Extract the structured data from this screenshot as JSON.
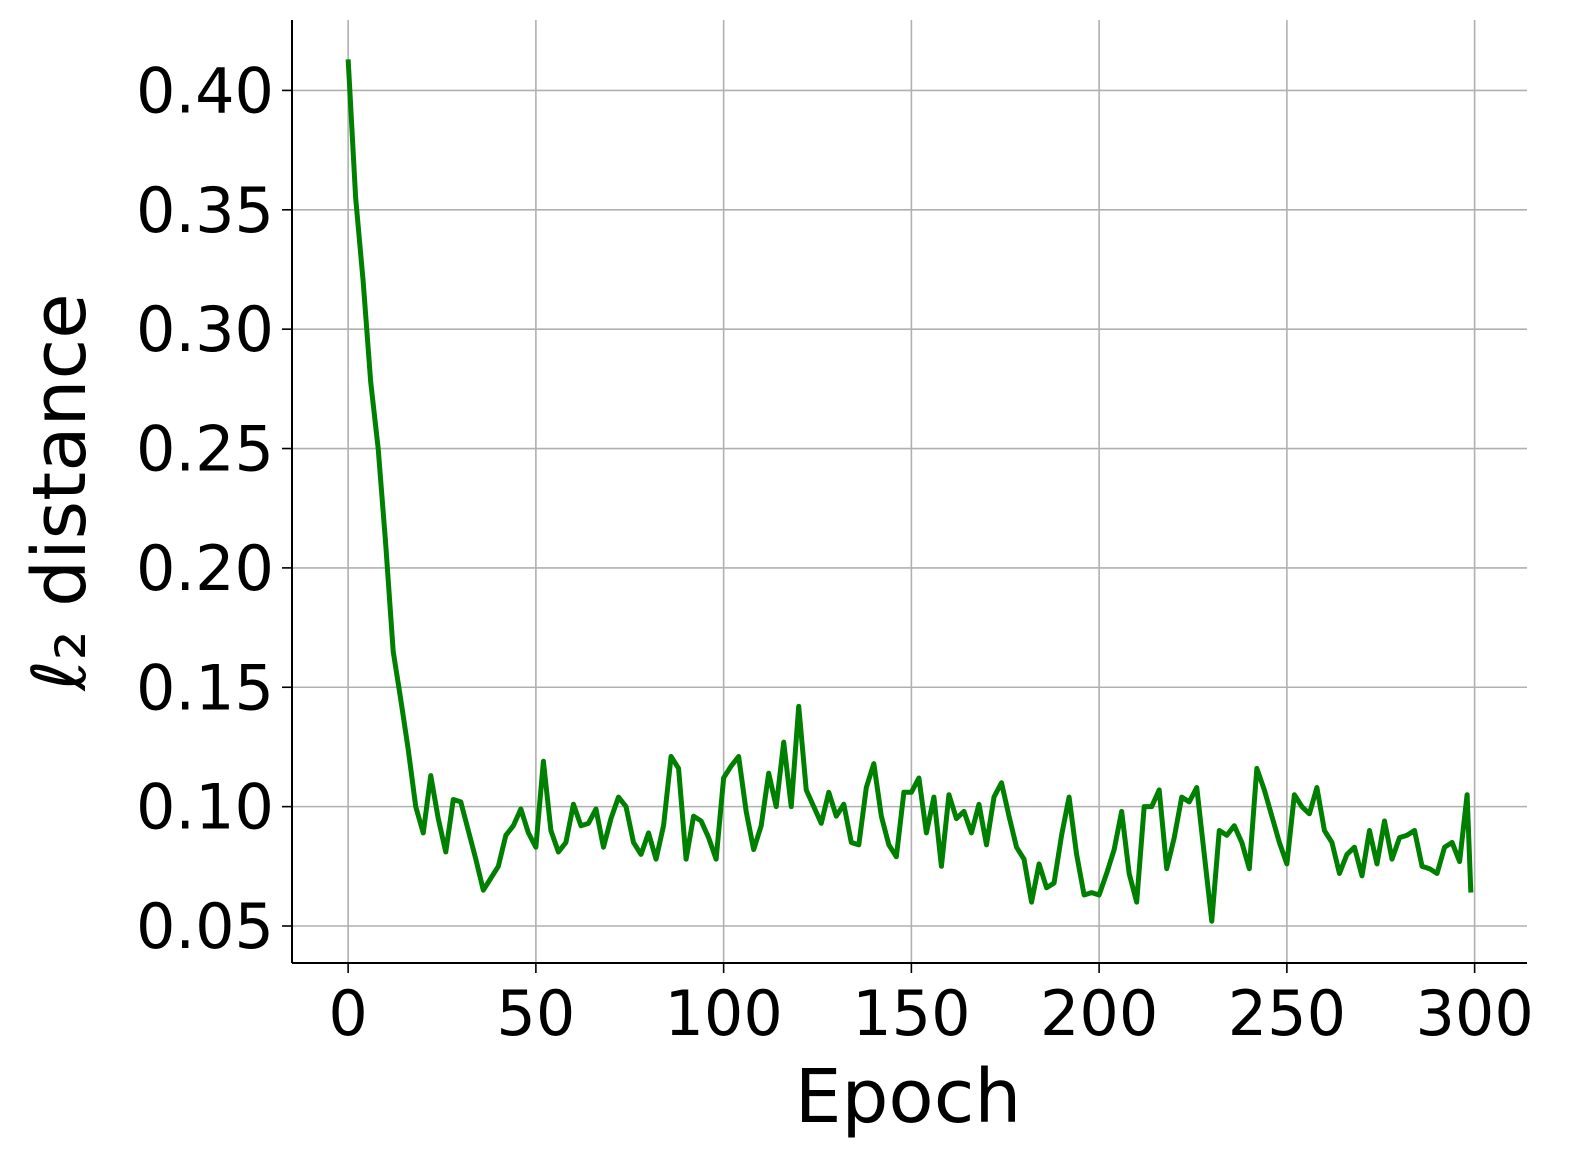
{
  "chart_data": {
    "type": "line",
    "xlabel": "Epoch",
    "ylabel": "ℓ₂ distance",
    "x": [
      0,
      2,
      4,
      6,
      8,
      10,
      12,
      14,
      16,
      18,
      20,
      22,
      24,
      26,
      28,
      30,
      32,
      34,
      36,
      38,
      40,
      42,
      44,
      46,
      48,
      50,
      52,
      54,
      56,
      58,
      60,
      62,
      64,
      66,
      68,
      70,
      72,
      74,
      76,
      78,
      80,
      82,
      84,
      86,
      88,
      90,
      92,
      94,
      96,
      98,
      100,
      102,
      104,
      106,
      108,
      110,
      112,
      114,
      116,
      118,
      120,
      122,
      124,
      126,
      128,
      130,
      132,
      134,
      136,
      138,
      140,
      142,
      144,
      146,
      148,
      150,
      152,
      154,
      156,
      158,
      160,
      162,
      164,
      166,
      168,
      170,
      172,
      174,
      176,
      178,
      180,
      182,
      184,
      186,
      188,
      190,
      192,
      194,
      196,
      198,
      200,
      202,
      204,
      206,
      208,
      210,
      212,
      214,
      216,
      218,
      220,
      222,
      224,
      226,
      228,
      230,
      232,
      234,
      236,
      238,
      240,
      242,
      244,
      246,
      248,
      250,
      252,
      254,
      256,
      258,
      260,
      262,
      264,
      266,
      268,
      270,
      272,
      274,
      276,
      278,
      280,
      282,
      284,
      286,
      288,
      290,
      292,
      294,
      296,
      298,
      299
    ],
    "values": [
      0.413,
      0.355,
      0.32,
      0.278,
      0.25,
      0.21,
      0.165,
      0.145,
      0.124,
      0.1,
      0.089,
      0.113,
      0.095,
      0.081,
      0.103,
      0.102,
      0.09,
      0.078,
      0.065,
      0.07,
      0.075,
      0.088,
      0.092,
      0.099,
      0.089,
      0.083,
      0.119,
      0.09,
      0.081,
      0.085,
      0.101,
      0.092,
      0.093,
      0.099,
      0.083,
      0.095,
      0.104,
      0.1,
      0.085,
      0.08,
      0.089,
      0.078,
      0.092,
      0.121,
      0.116,
      0.078,
      0.096,
      0.094,
      0.087,
      0.078,
      0.112,
      0.117,
      0.121,
      0.098,
      0.082,
      0.092,
      0.114,
      0.1,
      0.127,
      0.1,
      0.142,
      0.107,
      0.1,
      0.093,
      0.106,
      0.096,
      0.101,
      0.085,
      0.084,
      0.108,
      0.118,
      0.096,
      0.084,
      0.079,
      0.106,
      0.106,
      0.112,
      0.089,
      0.104,
      0.075,
      0.105,
      0.095,
      0.098,
      0.089,
      0.101,
      0.084,
      0.104,
      0.11,
      0.096,
      0.083,
      0.078,
      0.06,
      0.076,
      0.066,
      0.068,
      0.088,
      0.104,
      0.08,
      0.063,
      0.064,
      0.063,
      0.072,
      0.082,
      0.098,
      0.072,
      0.06,
      0.1,
      0.1,
      0.107,
      0.074,
      0.087,
      0.104,
      0.102,
      0.108,
      0.08,
      0.052,
      0.09,
      0.088,
      0.092,
      0.085,
      0.074,
      0.116,
      0.107,
      0.096,
      0.085,
      0.076,
      0.105,
      0.1,
      0.097,
      0.108,
      0.09,
      0.085,
      0.072,
      0.08,
      0.083,
      0.071,
      0.09,
      0.076,
      0.094,
      0.078,
      0.087,
      0.088,
      0.09,
      0.075,
      0.074,
      0.072,
      0.083,
      0.085,
      0.077,
      0.105,
      0.064
    ],
    "color": "#008000",
    "xlim": [
      -14.95,
      313.95
    ],
    "xticks": [
      0,
      50,
      100,
      150,
      200,
      250,
      300
    ],
    "ylim": [
      0.0345,
      0.4295
    ],
    "yticks": [
      0.05,
      {
        "value": 0.1,
        "label": "0.10"
      },
      0.15,
      {
        "value": 0.2,
        "label": "0.20"
      },
      0.25,
      {
        "value": 0.3,
        "label": "0.30"
      },
      0.35,
      {
        "value": 0.4,
        "label": "0.40"
      }
    ],
    "grid": true
  }
}
